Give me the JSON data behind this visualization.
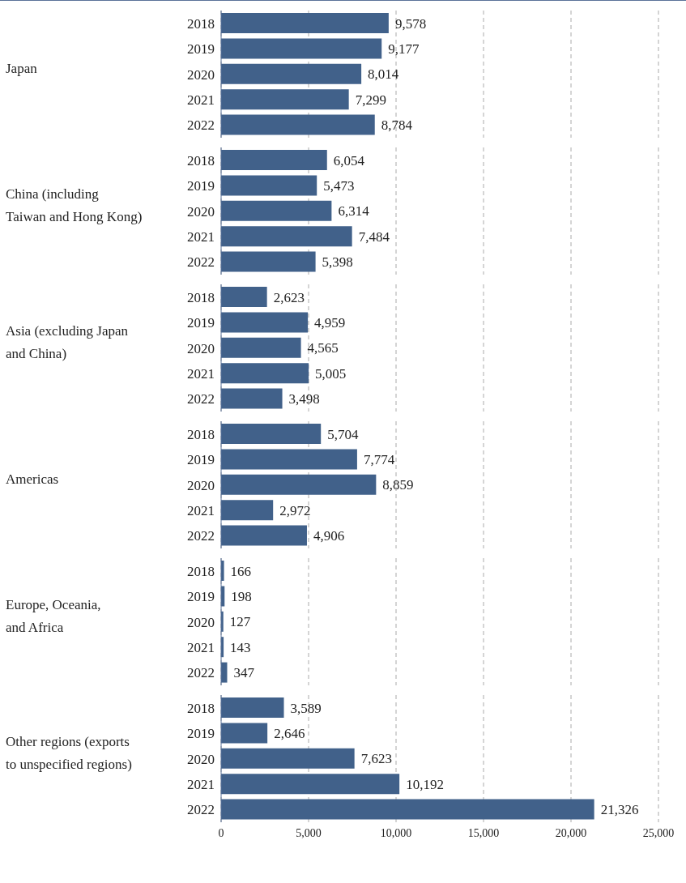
{
  "chart_data": [
    {
      "type": "bar",
      "orientation": "horizontal",
      "ylabel": "Japan",
      "categories": [
        "2018",
        "2019",
        "2020",
        "2021",
        "2022"
      ],
      "values": [
        9578,
        9177,
        8014,
        7299,
        8784
      ],
      "value_labels": [
        "9,578",
        "9,177",
        "8,014",
        "7,299",
        "8,784"
      ],
      "color": "#41618a",
      "xlim": [
        0,
        25000
      ],
      "xticks": [
        0,
        5000,
        10000,
        15000,
        20000,
        25000
      ],
      "grid": "x",
      "tick_labels": "y"
    },
    {
      "type": "bar",
      "orientation": "horizontal",
      "ylabel": "China (including\nTaiwan and Hong Kong)",
      "categories": [
        "2018",
        "2019",
        "2020",
        "2021",
        "2022"
      ],
      "values": [
        6054,
        5473,
        6314,
        7484,
        5398
      ],
      "value_labels": [
        "6,054",
        "5,473",
        "6,314",
        "7,484",
        "5,398"
      ],
      "color": "#41618a",
      "xlim": [
        0,
        25000
      ],
      "xticks": [
        0,
        5000,
        10000,
        15000,
        20000,
        25000
      ],
      "grid": "x",
      "tick_labels": "y"
    },
    {
      "type": "bar",
      "orientation": "horizontal",
      "ylabel": "Asia (excluding Japan\nand China)",
      "categories": [
        "2018",
        "2019",
        "2020",
        "2021",
        "2022"
      ],
      "values": [
        2623,
        4959,
        4565,
        5005,
        3498
      ],
      "value_labels": [
        "2,623",
        "4,959",
        "4,565",
        "5,005",
        "3,498"
      ],
      "color": "#41618a",
      "xlim": [
        0,
        25000
      ],
      "xticks": [
        0,
        5000,
        10000,
        15000,
        20000,
        25000
      ],
      "grid": "x",
      "tick_labels": "y"
    },
    {
      "type": "bar",
      "orientation": "horizontal",
      "ylabel": "Americas",
      "categories": [
        "2018",
        "2019",
        "2020",
        "2021",
        "2022"
      ],
      "values": [
        5704,
        7774,
        8859,
        2972,
        4906
      ],
      "value_labels": [
        "5,704",
        "7,774",
        "8,859",
        "2,972",
        "4,906"
      ],
      "color": "#41618a",
      "xlim": [
        0,
        25000
      ],
      "xticks": [
        0,
        5000,
        10000,
        15000,
        20000,
        25000
      ],
      "grid": "x",
      "tick_labels": "y"
    },
    {
      "type": "bar",
      "orientation": "horizontal",
      "ylabel": "Europe, Oceania,\nand Africa",
      "categories": [
        "2018",
        "2019",
        "2020",
        "2021",
        "2022"
      ],
      "values": [
        166,
        198,
        127,
        143,
        347
      ],
      "value_labels": [
        "166",
        "198",
        "127",
        "143",
        "347"
      ],
      "color": "#41618a",
      "xlim": [
        0,
        25000
      ],
      "xticks": [
        0,
        5000,
        10000,
        15000,
        20000,
        25000
      ],
      "grid": "x",
      "tick_labels": "y"
    },
    {
      "type": "bar",
      "orientation": "horizontal",
      "ylabel": "Other regions (exports\nto unspecified regions)",
      "categories": [
        "2018",
        "2019",
        "2020",
        "2021",
        "2022"
      ],
      "values": [
        3589,
        2646,
        7623,
        10192,
        21326
      ],
      "value_labels": [
        "3,589",
        "2,646",
        "7,623",
        "10,192",
        "21,326"
      ],
      "color": "#41618a",
      "xlim": [
        0,
        25000
      ],
      "xticks": [
        0,
        {
          "value": 5000,
          "label": "5,000"
        },
        {
          "value": 10000,
          "label": "10,000"
        },
        {
          "value": 15000,
          "label": "15,000"
        },
        {
          "value": 20000,
          "label": "20,000"
        },
        {
          "value": 25000,
          "label": "25,000"
        }
      ],
      "grid": "x"
    }
  ]
}
